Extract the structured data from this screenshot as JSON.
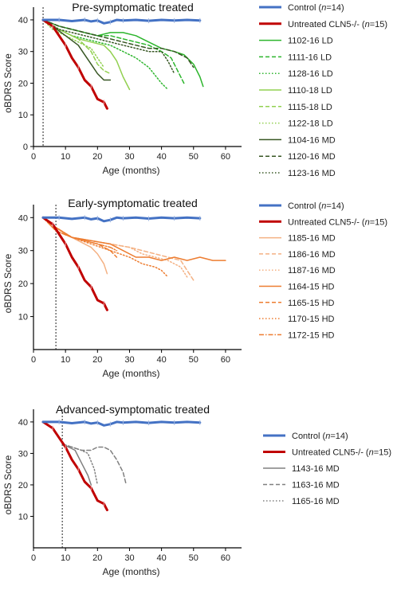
{
  "chart_data": [
    {
      "type": "line",
      "title": "Pre-symptomatic treated",
      "xlabel": "Age (months)",
      "ylabel": "oBDRS Score",
      "xlim": [
        0,
        65
      ],
      "ylim": [
        0,
        42
      ],
      "xticks": [
        0,
        10,
        20,
        30,
        40,
        50,
        60
      ],
      "yticks": [
        0,
        10,
        20,
        30,
        40
      ],
      "treatment_line_x": 3,
      "legend_position": "right",
      "series": [
        {
          "name": "Control (n=14)",
          "name_parts": [
            "Control (",
            "n",
            "=14)"
          ],
          "color": "#4472c4",
          "dash": "solid",
          "width": 3,
          "x": [
            3,
            8,
            12,
            16,
            18,
            20,
            22,
            24,
            26,
            28,
            32,
            36,
            40,
            44,
            48,
            52
          ],
          "y": [
            40,
            40,
            39.6,
            40,
            39.5,
            39.8,
            38.9,
            39.3,
            40,
            39.8,
            40,
            39.7,
            40,
            39.8,
            40,
            39.8
          ]
        },
        {
          "name": "Untreated CLN5-/- (n=15)",
          "name_parts": [
            "Untreated CLN5-/- (",
            "n",
            "=15)"
          ],
          "color": "#c00000",
          "dash": "solid",
          "width": 3,
          "x": [
            3,
            6,
            8,
            10,
            12,
            14,
            16,
            18,
            20,
            22,
            23
          ],
          "y": [
            40,
            38,
            35,
            32,
            28,
            25,
            21,
            19,
            15,
            14,
            12
          ]
        },
        {
          "name": "1102-16 LD",
          "color": "#2db52d",
          "dash": "solid",
          "width": 1.5,
          "x": [
            3,
            8,
            12,
            16,
            20,
            24,
            28,
            32,
            36,
            40,
            44,
            47,
            50,
            52,
            53
          ],
          "y": [
            40,
            38,
            37,
            36,
            35,
            36,
            36,
            35,
            33,
            31,
            30,
            29,
            26,
            22,
            19
          ]
        },
        {
          "name": "1111-16 LD",
          "color": "#2db52d",
          "dash": "dashed",
          "width": 1.5,
          "x": [
            3,
            8,
            12,
            16,
            20,
            24,
            28,
            32,
            36,
            40,
            43,
            45,
            47
          ],
          "y": [
            40,
            38,
            37,
            36,
            35,
            35,
            34,
            33,
            32,
            30,
            28,
            24,
            20
          ]
        },
        {
          "name": "1128-16 LD",
          "color": "#2db52d",
          "dash": "dotted",
          "width": 1.5,
          "x": [
            3,
            8,
            12,
            16,
            20,
            24,
            28,
            32,
            36,
            40,
            42
          ],
          "y": [
            40,
            37,
            35,
            34,
            33,
            32,
            30,
            28,
            25,
            20,
            18
          ]
        },
        {
          "name": "1110-18 LD",
          "color": "#92d050",
          "dash": "solid",
          "width": 1.5,
          "x": [
            3,
            6,
            10,
            14,
            18,
            22,
            24,
            26,
            28,
            30
          ],
          "y": [
            40,
            38,
            36,
            34,
            33,
            32,
            30,
            27,
            22,
            18
          ]
        },
        {
          "name": "1115-18 LD",
          "color": "#92d050",
          "dash": "dashed",
          "width": 1.5,
          "x": [
            3,
            6,
            10,
            14,
            18,
            20,
            22,
            24
          ],
          "y": [
            40,
            38,
            36,
            34,
            30,
            26,
            24,
            23
          ]
        },
        {
          "name": "1122-18 LD",
          "color": "#92d050",
          "dash": "dotted",
          "width": 1.5,
          "x": [
            3,
            6,
            10,
            14,
            18,
            20,
            22
          ],
          "y": [
            40,
            37,
            35,
            33,
            31,
            28,
            25
          ]
        },
        {
          "name": "1104-16 MD",
          "color": "#375623",
          "dash": "solid",
          "width": 1.5,
          "x": [
            3,
            6,
            10,
            14,
            16,
            18,
            20,
            22,
            24
          ],
          "y": [
            40,
            38,
            35,
            32,
            29,
            26,
            23,
            21,
            21
          ]
        },
        {
          "name": "1120-16 MD",
          "color": "#375623",
          "dash": "dashed",
          "width": 1.5,
          "x": [
            3,
            8,
            12,
            16,
            20,
            24,
            28,
            32,
            36,
            40,
            44,
            48,
            50
          ],
          "y": [
            40,
            38,
            37,
            36,
            35,
            34,
            33,
            32,
            31,
            31,
            30,
            28,
            25
          ]
        },
        {
          "name": "1123-16 MD",
          "color": "#375623",
          "dash": "dotted",
          "width": 1.5,
          "x": [
            3,
            8,
            12,
            16,
            20,
            24,
            28,
            32,
            36,
            40,
            42,
            44
          ],
          "y": [
            40,
            37,
            36,
            35,
            34,
            33,
            32,
            31,
            30,
            30,
            27,
            23
          ]
        }
      ]
    },
    {
      "type": "line",
      "title": "Early-symptomatic treated",
      "xlabel": "Age (months)",
      "ylabel": "oBDRS Score",
      "xlim": [
        0,
        65
      ],
      "ylim": [
        0,
        42
      ],
      "xticks": [
        0,
        10,
        20,
        30,
        40,
        50,
        60
      ],
      "yticks": [
        10,
        20,
        30,
        40
      ],
      "treatment_line_x": 7,
      "legend_position": "right",
      "series": [
        {
          "name": "Control (n=14)",
          "name_parts": [
            "Control (",
            "n",
            "=14)"
          ],
          "color": "#4472c4",
          "dash": "solid",
          "width": 3,
          "x": [
            3,
            8,
            12,
            16,
            18,
            20,
            22,
            24,
            26,
            28,
            32,
            36,
            40,
            44,
            48,
            52
          ],
          "y": [
            40,
            40,
            39.6,
            40,
            39.5,
            39.8,
            38.9,
            39.3,
            40,
            39.8,
            40,
            39.7,
            40,
            39.8,
            40,
            39.8
          ]
        },
        {
          "name": "Untreated CLN5-/- (n=15)",
          "name_parts": [
            "Untreated CLN5-/- (",
            "n",
            "=15)"
          ],
          "color": "#c00000",
          "dash": "solid",
          "width": 3,
          "x": [
            3,
            6,
            8,
            10,
            12,
            14,
            16,
            18,
            20,
            22,
            23
          ],
          "y": [
            40,
            38,
            35,
            32,
            28,
            25,
            21,
            19,
            15,
            14,
            12
          ]
        },
        {
          "name": "1185-16 MD",
          "color": "#f4b183",
          "dash": "solid",
          "width": 1.5,
          "x": [
            3,
            7,
            10,
            14,
            18,
            20,
            22,
            23
          ],
          "y": [
            40,
            37,
            35,
            33,
            31,
            29,
            26,
            23
          ]
        },
        {
          "name": "1186-16 MD",
          "color": "#f4b183",
          "dash": "dashed",
          "width": 1.5,
          "x": [
            3,
            7,
            12,
            18,
            24,
            30,
            34,
            38,
            42,
            46,
            48,
            50
          ],
          "y": [
            40,
            37,
            34,
            33,
            32,
            31,
            30,
            29,
            28,
            27,
            24,
            21
          ]
        },
        {
          "name": "1187-16 MD",
          "color": "#f4b183",
          "dash": "dotted",
          "width": 1.5,
          "x": [
            3,
            7,
            12,
            18,
            24,
            30,
            34,
            38,
            42,
            46,
            48
          ],
          "y": [
            40,
            37,
            34,
            33,
            32,
            31,
            29,
            28,
            27,
            25,
            22
          ]
        },
        {
          "name": "1164-15 HD",
          "color": "#ed7d31",
          "dash": "solid",
          "width": 1.5,
          "x": [
            3,
            7,
            12,
            18,
            24,
            28,
            32,
            36,
            40,
            44,
            48,
            52,
            56,
            60
          ],
          "y": [
            40,
            37,
            34,
            33,
            32,
            30,
            28,
            28,
            27,
            28,
            27,
            28,
            27,
            27
          ]
        },
        {
          "name": "1165-15 HD",
          "color": "#ed7d31",
          "dash": "dashed",
          "width": 1.5,
          "x": [
            3,
            7,
            12,
            16,
            20,
            24,
            26
          ],
          "y": [
            40,
            36,
            34,
            33,
            32,
            30,
            28
          ]
        },
        {
          "name": "1170-15 HD",
          "color": "#ed7d31",
          "dash": "dotted",
          "width": 1.5,
          "x": [
            3,
            7,
            12,
            18,
            24,
            30,
            34,
            38,
            40,
            42
          ],
          "y": [
            40,
            37,
            34,
            32,
            30,
            28,
            26,
            25,
            24,
            22
          ]
        },
        {
          "name": "1172-15 HD",
          "color": "#ed7d31",
          "dash": "dashdot",
          "width": 1.5,
          "x": [
            3,
            7,
            12,
            16,
            20,
            24,
            26
          ],
          "y": [
            40,
            36,
            34,
            33,
            32,
            31,
            30
          ]
        }
      ]
    },
    {
      "type": "line",
      "title": "Advanced-symptomatic treated",
      "xlabel": "Age (months)",
      "ylabel": "oBDRS Score",
      "xlim": [
        0,
        65
      ],
      "ylim": [
        0,
        42
      ],
      "xticks": [
        0,
        10,
        20,
        30,
        40,
        50,
        60
      ],
      "yticks": [
        10,
        20,
        30,
        40
      ],
      "treatment_line_x": 9,
      "legend_position": "right",
      "series": [
        {
          "name": "Control (n=14)",
          "name_parts": [
            "Control (",
            "n",
            "=14)"
          ],
          "color": "#4472c4",
          "dash": "solid",
          "width": 3,
          "x": [
            3,
            8,
            12,
            16,
            18,
            20,
            22,
            24,
            26,
            28,
            32,
            36,
            40,
            44,
            48,
            52
          ],
          "y": [
            40,
            40,
            39.6,
            40,
            39.5,
            39.8,
            38.9,
            39.3,
            40,
            39.8,
            40,
            39.7,
            40,
            39.8,
            40,
            39.8
          ]
        },
        {
          "name": "Untreated CLN5-/- (n=15)",
          "name_parts": [
            "Untreated CLN5-/- (",
            "n",
            "=15)"
          ],
          "color": "#c00000",
          "dash": "solid",
          "width": 3,
          "x": [
            3,
            6,
            8,
            10,
            12,
            14,
            16,
            18,
            20,
            22,
            23
          ],
          "y": [
            40,
            38,
            35,
            32,
            28,
            25,
            21,
            19,
            15,
            14,
            12
          ]
        },
        {
          "name": "1143-16 MD",
          "color": "#808080",
          "dash": "solid",
          "width": 1.5,
          "x": [
            9,
            11,
            13,
            15,
            17,
            18
          ],
          "y": [
            33,
            32,
            31,
            27,
            23,
            20
          ]
        },
        {
          "name": "1163-16 MD",
          "color": "#808080",
          "dash": "dashed",
          "width": 1.5,
          "x": [
            9,
            12,
            15,
            18,
            20,
            22,
            24,
            26,
            28,
            29
          ],
          "y": [
            33,
            32,
            31,
            31,
            32,
            32,
            31,
            28,
            24,
            20
          ]
        },
        {
          "name": "1165-16 MD",
          "color": "#808080",
          "dash": "dotted",
          "width": 1.5,
          "x": [
            9,
            12,
            15,
            17,
            19,
            20
          ],
          "y": [
            33,
            32,
            31,
            30,
            25,
            20
          ]
        }
      ]
    }
  ]
}
